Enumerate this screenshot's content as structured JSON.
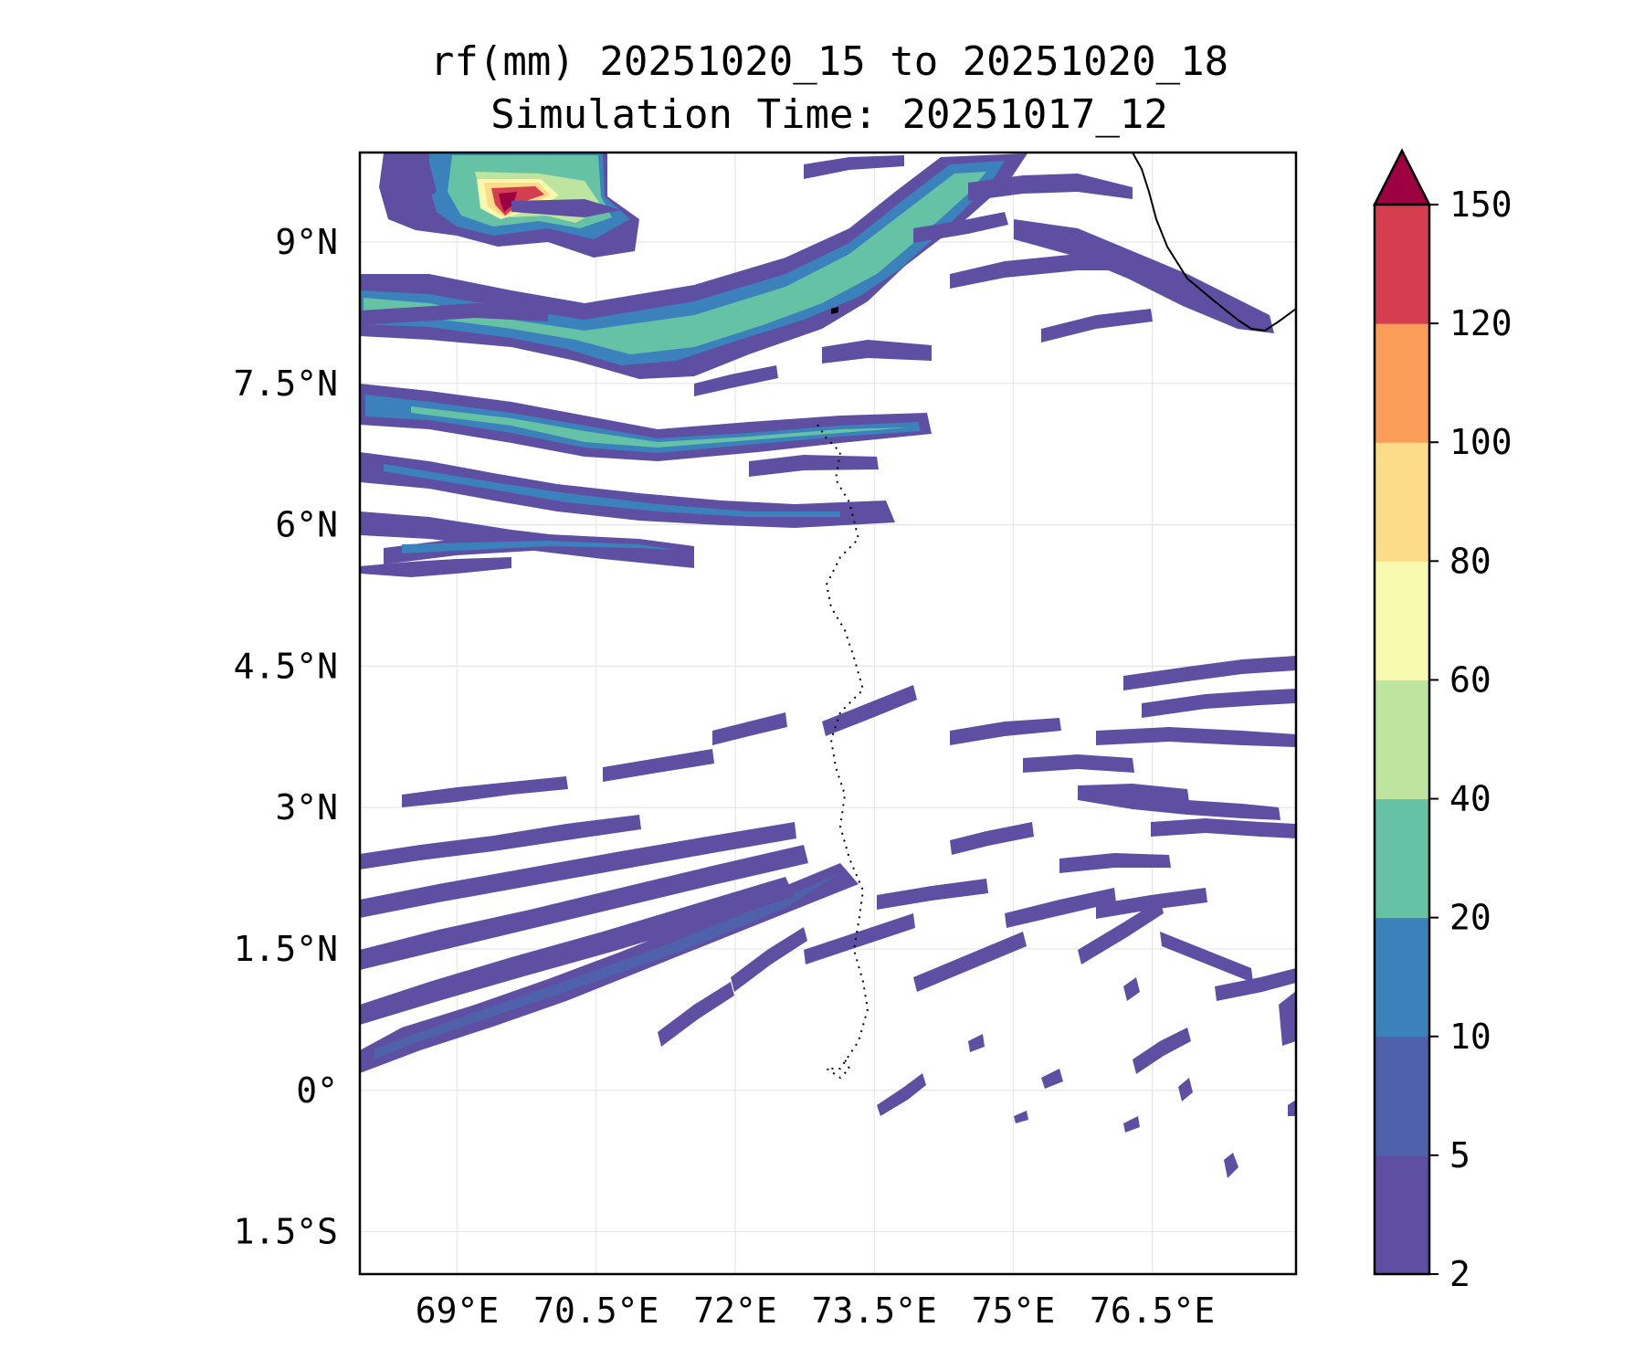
{
  "title": {
    "line1": "rf(mm) 20251020_15 to 20251020_18",
    "line2": "Simulation Time: 20251017_12"
  },
  "map": {
    "lon_range": [
      67.95,
      78.05
    ],
    "lat_range": [
      -1.95,
      9.95
    ],
    "lon_ticks": [
      {
        "value": 69,
        "label": "69°E"
      },
      {
        "value": 70.5,
        "label": "70.5°E"
      },
      {
        "value": 72,
        "label": "72°E"
      },
      {
        "value": 73.5,
        "label": "73.5°E"
      },
      {
        "value": 75,
        "label": "75°E"
      },
      {
        "value": 76.5,
        "label": "76.5°E"
      }
    ],
    "lat_ticks": [
      {
        "value": 9,
        "label": "9°N"
      },
      {
        "value": 7.5,
        "label": "7.5°N"
      },
      {
        "value": 6,
        "label": "6°N"
      },
      {
        "value": 4.5,
        "label": "4.5°N"
      },
      {
        "value": 3,
        "label": "3°N"
      },
      {
        "value": 1.5,
        "label": "1.5°N"
      },
      {
        "value": 0,
        "label": "0°"
      },
      {
        "value": -1.5,
        "label": "1.5°S"
      }
    ]
  },
  "colorbar": {
    "levels": [
      "2",
      "5",
      "10",
      "20",
      "40",
      "60",
      "80",
      "100",
      "120",
      "150"
    ],
    "colors": [
      "#5e4fa2",
      "#4f61aa",
      "#3b82bd",
      "#66c2a5",
      "#bde5a0",
      "#f5faaf",
      "#fddc89",
      "#f99d59",
      "#d53e4f"
    ],
    "extend_color": "#9e0142"
  },
  "colors": {
    "c2": "#5e4fa2",
    "c5": "#4f61aa",
    "c10": "#3b82bd",
    "c20": "#66c2a5",
    "c40": "#bde5a0",
    "c60": "#f5faaf",
    "c80": "#fddc89",
    "c100": "#f99d59",
    "c120": "#d53e4f",
    "c150": "#9e0142"
  }
}
